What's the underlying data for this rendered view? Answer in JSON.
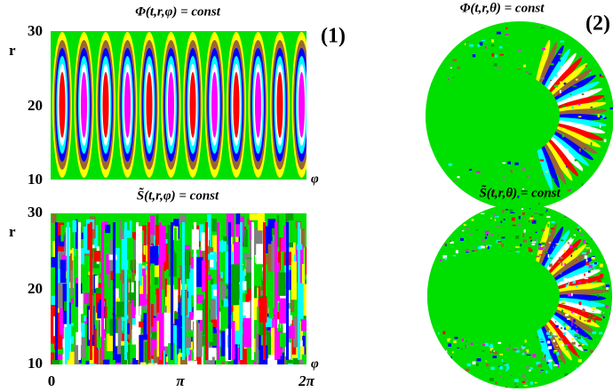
{
  "panel1": {
    "label": "(1)",
    "top": {
      "title": "Φ(t,r,φ) = const",
      "y_label": "r",
      "y_ticks": [
        "30",
        "20",
        "10"
      ],
      "x_label": "φ"
    },
    "bottom": {
      "title": "S̃(t,r,φ) = const",
      "y_label": "r",
      "y_ticks": [
        "30",
        "20",
        "10"
      ],
      "x_label": "φ",
      "x_ticks": [
        "0",
        "π",
        "2π"
      ]
    }
  },
  "panel2": {
    "label": "(2)",
    "top_title": "Φ(t,r,θ) = const",
    "bottom_title": "S̃(t,r,θ) = const"
  }
}
